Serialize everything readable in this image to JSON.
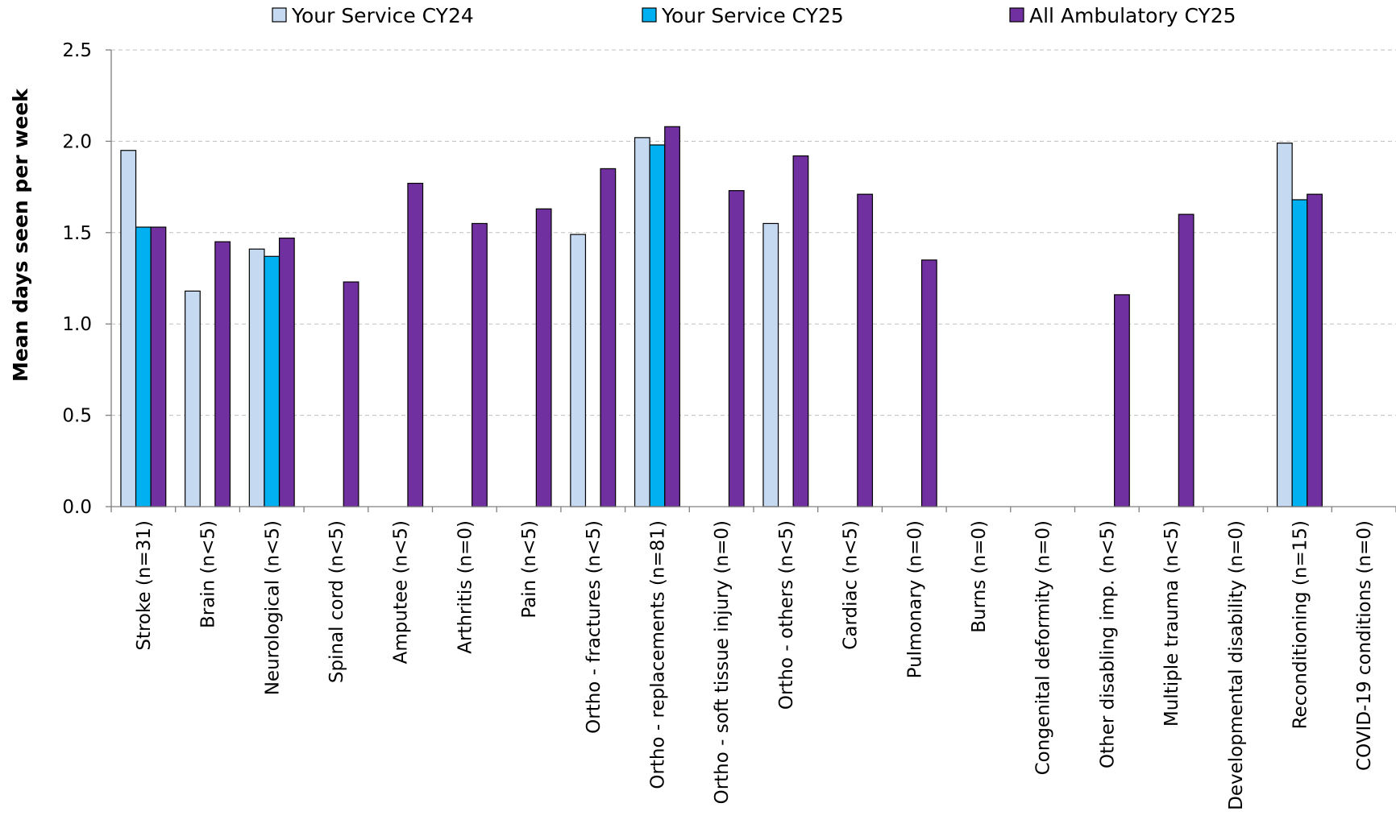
{
  "chart_data": {
    "type": "bar",
    "ylabel": "Mean days seen per week",
    "xlabel": "",
    "ylim": [
      0,
      2.5
    ],
    "yticks": [
      "0.0",
      "0.5",
      "1.0",
      "1.5",
      "2.0",
      "2.5"
    ],
    "grid": "horizontal dashed",
    "legend_position": "top",
    "categories": [
      "Stroke (n=31)",
      "Brain (n<5)",
      "Neurological (n<5)",
      "Spinal cord (n<5)",
      "Amputee (n<5)",
      "Arthritis (n=0)",
      "Pain (n<5)",
      "Ortho - fractures (n<5)",
      "Ortho - replacements (n=81)",
      "Ortho - soft tissue injury (n=0)",
      "Ortho - others (n<5)",
      "Cardiac (n<5)",
      "Pulmonary (n=0)",
      "Burns (n=0)",
      "Congenital deformity (n=0)",
      "Other disabling imp. (n<5)",
      "Multiple trauma (n<5)",
      "Developmental disability (n=0)",
      "Reconditioning (n=15)",
      "COVID-19 conditions (n=0)"
    ],
    "series": [
      {
        "name": "Your Service CY24",
        "color": "#c5d9f1",
        "values": [
          1.95,
          1.18,
          1.41,
          null,
          null,
          null,
          null,
          1.49,
          2.02,
          null,
          1.55,
          null,
          null,
          null,
          null,
          null,
          null,
          null,
          1.99,
          null
        ]
      },
      {
        "name": "Your Service CY25",
        "color": "#00b0f0",
        "values": [
          1.53,
          null,
          1.37,
          null,
          null,
          null,
          null,
          null,
          1.98,
          null,
          null,
          null,
          null,
          null,
          null,
          null,
          null,
          null,
          1.68,
          null
        ]
      },
      {
        "name": "All Ambulatory CY25",
        "color": "#7030a0",
        "values": [
          1.53,
          1.45,
          1.47,
          1.23,
          1.77,
          1.55,
          1.63,
          1.85,
          2.08,
          1.73,
          1.92,
          1.71,
          1.35,
          null,
          null,
          1.16,
          1.6,
          null,
          1.71,
          null
        ]
      }
    ]
  }
}
